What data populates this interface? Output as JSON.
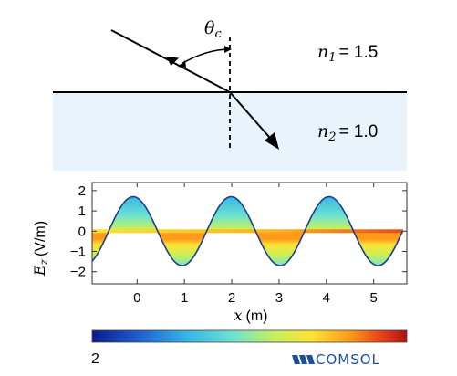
{
  "diagram": {
    "angle_symbol": "θ",
    "angle_subscript": "c",
    "medium1": {
      "label": "n",
      "sub": "1",
      "value": "= 1.5"
    },
    "medium2": {
      "label": "n",
      "sub": "2",
      "value": "= 1.0"
    },
    "medium2_color": "#e8f3fb"
  },
  "chart_data": {
    "type": "line",
    "x_ticks": [
      "0",
      "1",
      "2",
      "3",
      "4",
      "5"
    ],
    "y_ticks": [
      "2",
      "1",
      "0",
      "−1",
      "−2"
    ],
    "ylabel_main": "E",
    "ylabel_sub": "z",
    "ylabel_unit": "(V/m)",
    "xlabel_var": "x",
    "xlabel_unit": "(m)",
    "xlim": [
      -0.95,
      5.7
    ],
    "ylim": [
      -2.6,
      2.4
    ],
    "wave": {
      "amplitude": 1.7,
      "wavelength": 2.07,
      "phase_x": -0.6,
      "x_end": 5.62
    },
    "line_color": "#1b3f8f"
  },
  "colorbar": {
    "tick_label": "2",
    "colors": [
      "#0a1a8c",
      "#1e5fd0",
      "#35b6e6",
      "#6fe3cf",
      "#c8f05a",
      "#ffe233",
      "#ff9a1a",
      "#e8401a",
      "#b01010"
    ]
  },
  "brand": {
    "name": "COMSOL",
    "color": "#1a4fa0"
  }
}
